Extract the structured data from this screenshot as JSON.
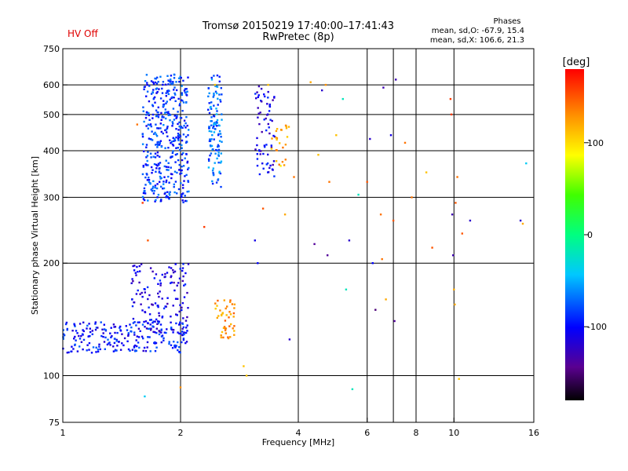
{
  "header": {
    "status": "HV Off",
    "title_line1": "Tromsø 20150219 17:40:00–17:41:43",
    "title_line2": "RwPretec (8p)",
    "phases_title": "Phases",
    "phases_o": "mean, sd,O: -67.9, 15.4",
    "phases_x": "mean, sd,X: 106.6, 21.3"
  },
  "colors": {
    "status": "#e00000",
    "grid": "#000000",
    "background": "#ffffff"
  },
  "colorbar": {
    "label": "[deg]",
    "ticks": [
      "100",
      "0",
      "-100"
    ],
    "tick_values": [
      100,
      0,
      -100
    ],
    "range": [
      -180,
      180
    ]
  },
  "chart_data": {
    "type": "scatter",
    "title": "Tromsø 20150219 17:40:00–17:41:43",
    "subtitle": "RwPretec (8p)",
    "xlabel": "Frequency [MHz]",
    "ylabel": "Stationary phase Virtual Height [km]",
    "xscale": "log",
    "yscale": "log",
    "xlim": [
      1,
      16
    ],
    "ylim": [
      75,
      750
    ],
    "x_ticks": [
      "1",
      "2",
      "4",
      "6",
      "8",
      "10",
      "16"
    ],
    "x_tick_values": [
      1,
      2,
      4,
      6,
      8,
      10,
      16
    ],
    "x_grid": [
      2,
      4,
      6,
      7,
      8,
      10
    ],
    "y_ticks": [
      "75",
      "100",
      "200",
      "300",
      "400",
      "500",
      "600",
      "750"
    ],
    "y_tick_values": [
      75,
      100,
      200,
      300,
      400,
      500,
      600,
      750
    ],
    "y_grid": [
      100,
      200,
      300,
      400,
      500,
      600
    ],
    "grid": true,
    "color_scale": "phase in degrees (rainbow)",
    "clusters": [
      {
        "name": "E-region O trace",
        "x_range": [
          1.0,
          2.1
        ],
        "y_range": [
          115,
          140
        ],
        "phase": -95,
        "count": 230
      },
      {
        "name": "E-region rise",
        "x_range": [
          1.5,
          2.1
        ],
        "y_range": [
          130,
          200
        ],
        "phase": -110,
        "count": 140
      },
      {
        "name": "F-region O trace",
        "x_range": [
          1.6,
          2.1
        ],
        "y_range": [
          290,
          640
        ],
        "phase": -85,
        "count": 420
      },
      {
        "name": "F-region column 2.4 MHz",
        "x_range": [
          2.35,
          2.55
        ],
        "y_range": [
          320,
          640
        ],
        "phase": -70,
        "count": 120
      },
      {
        "name": "F-region column 3.4 MHz",
        "x_range": [
          3.1,
          3.5
        ],
        "y_range": [
          340,
          600
        ],
        "phase": -110,
        "count": 70
      },
      {
        "name": "E-region X echoes",
        "x_range": [
          2.45,
          2.75
        ],
        "y_range": [
          125,
          160
        ],
        "phase": 130,
        "count": 45
      },
      {
        "name": "F-region X echoes",
        "x_range": [
          3.4,
          3.8
        ],
        "y_range": [
          360,
          470
        ],
        "phase": 115,
        "count": 25
      }
    ],
    "scattered_points": [
      {
        "x": 1.55,
        "y": 470,
        "phase": 140
      },
      {
        "x": 1.6,
        "y": 290,
        "phase": 160
      },
      {
        "x": 1.62,
        "y": 88,
        "phase": -40
      },
      {
        "x": 1.65,
        "y": 230,
        "phase": 150
      },
      {
        "x": 2.0,
        "y": 93,
        "phase": 130
      },
      {
        "x": 2.3,
        "y": 250,
        "phase": 160
      },
      {
        "x": 2.45,
        "y": 600,
        "phase": 110
      },
      {
        "x": 2.9,
        "y": 106,
        "phase": 110
      },
      {
        "x": 2.95,
        "y": 100,
        "phase": 110
      },
      {
        "x": 3.1,
        "y": 230,
        "phase": -110
      },
      {
        "x": 3.15,
        "y": 200,
        "phase": -100
      },
      {
        "x": 3.25,
        "y": 280,
        "phase": 150
      },
      {
        "x": 3.35,
        "y": 600,
        "phase": 110
      },
      {
        "x": 3.7,
        "y": 270,
        "phase": 120
      },
      {
        "x": 3.9,
        "y": 340,
        "phase": 140
      },
      {
        "x": 3.8,
        "y": 125,
        "phase": -120
      },
      {
        "x": 4.3,
        "y": 610,
        "phase": 120
      },
      {
        "x": 4.4,
        "y": 225,
        "phase": -140
      },
      {
        "x": 4.5,
        "y": 390,
        "phase": 110
      },
      {
        "x": 4.6,
        "y": 580,
        "phase": -120
      },
      {
        "x": 4.7,
        "y": 600,
        "phase": 130
      },
      {
        "x": 4.75,
        "y": 210,
        "phase": -140
      },
      {
        "x": 4.8,
        "y": 330,
        "phase": 140
      },
      {
        "x": 5.0,
        "y": 440,
        "phase": 110
      },
      {
        "x": 5.2,
        "y": 550,
        "phase": -20
      },
      {
        "x": 5.3,
        "y": 170,
        "phase": -20
      },
      {
        "x": 5.4,
        "y": 230,
        "phase": -120
      },
      {
        "x": 5.5,
        "y": 92,
        "phase": -20
      },
      {
        "x": 5.7,
        "y": 305,
        "phase": -20
      },
      {
        "x": 6.0,
        "y": 330,
        "phase": 150
      },
      {
        "x": 6.1,
        "y": 430,
        "phase": -120
      },
      {
        "x": 6.2,
        "y": 200,
        "phase": -100
      },
      {
        "x": 6.3,
        "y": 150,
        "phase": -150
      },
      {
        "x": 6.5,
        "y": 270,
        "phase": 140
      },
      {
        "x": 6.55,
        "y": 205,
        "phase": 140
      },
      {
        "x": 6.6,
        "y": 590,
        "phase": -130
      },
      {
        "x": 6.7,
        "y": 160,
        "phase": 120
      },
      {
        "x": 6.9,
        "y": 440,
        "phase": -110
      },
      {
        "x": 7.0,
        "y": 260,
        "phase": 150
      },
      {
        "x": 7.05,
        "y": 140,
        "phase": -140
      },
      {
        "x": 7.1,
        "y": 620,
        "phase": -130
      },
      {
        "x": 7.5,
        "y": 420,
        "phase": 140
      },
      {
        "x": 7.8,
        "y": 300,
        "phase": 140
      },
      {
        "x": 8.5,
        "y": 350,
        "phase": 110
      },
      {
        "x": 8.8,
        "y": 220,
        "phase": 150
      },
      {
        "x": 9.8,
        "y": 550,
        "phase": 160
      },
      {
        "x": 9.85,
        "y": 500,
        "phase": 160
      },
      {
        "x": 9.9,
        "y": 270,
        "phase": -130
      },
      {
        "x": 9.95,
        "y": 210,
        "phase": -130
      },
      {
        "x": 10.0,
        "y": 170,
        "phase": 120
      },
      {
        "x": 10.05,
        "y": 155,
        "phase": 120
      },
      {
        "x": 10.1,
        "y": 290,
        "phase": 150
      },
      {
        "x": 10.2,
        "y": 340,
        "phase": 140
      },
      {
        "x": 10.3,
        "y": 98,
        "phase": 110
      },
      {
        "x": 10.5,
        "y": 240,
        "phase": 150
      },
      {
        "x": 11.0,
        "y": 260,
        "phase": -120
      },
      {
        "x": 14.8,
        "y": 260,
        "phase": -120
      },
      {
        "x": 15.0,
        "y": 255,
        "phase": 120
      },
      {
        "x": 15.3,
        "y": 370,
        "phase": -40
      }
    ]
  }
}
